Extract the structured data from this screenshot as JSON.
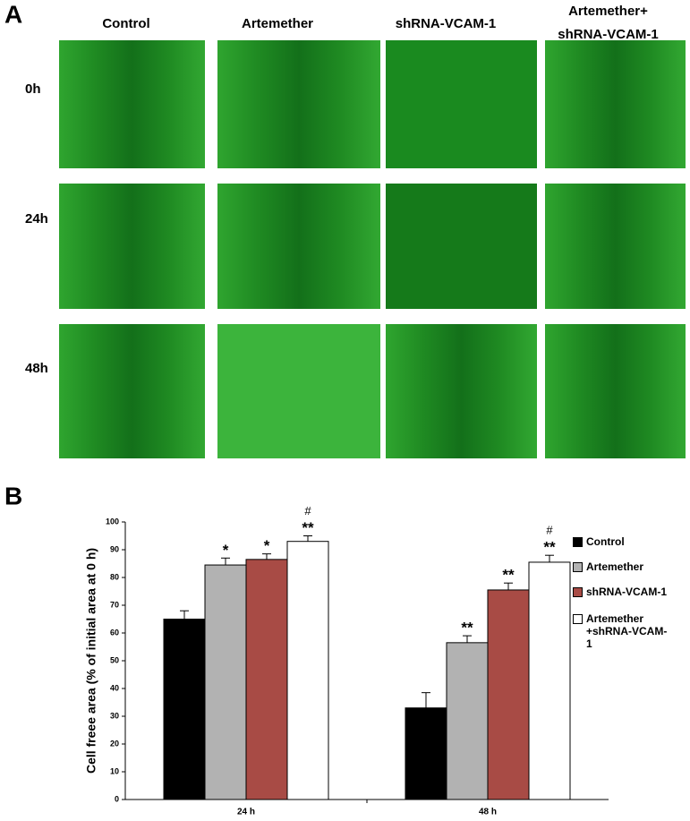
{
  "panel_a": {
    "label": "A",
    "columns": [
      "Control",
      "Artemether",
      "shRNA-VCAM-1",
      "Artemether+ shRNA-VCAM-1"
    ],
    "rows": [
      "0h",
      "24h",
      "48h"
    ]
  },
  "chart_data": {
    "type": "bar",
    "label": "B",
    "ylabel": "Cell freee area (% of initial area at 0 h)",
    "categories": [
      "24 h",
      "48 h"
    ],
    "series": [
      {
        "name": "Control",
        "color": "#000000",
        "values": [
          65,
          33
        ],
        "errors": [
          3,
          5.5
        ]
      },
      {
        "name": "Artemether",
        "color": "#b2b2b2",
        "values": [
          84.5,
          56.5
        ],
        "errors": [
          2.5,
          2.5
        ],
        "labels": [
          "*",
          "**"
        ]
      },
      {
        "name": "shRNA-VCAM-1",
        "color": "#a84b45",
        "values": [
          86.5,
          75.5
        ],
        "errors": [
          2,
          2.5
        ],
        "labels": [
          "*",
          "**"
        ]
      },
      {
        "name": "Artemether +shRNA-VCAM-1",
        "color": "#ffffff",
        "values": [
          93,
          85.5
        ],
        "errors": [
          2,
          2.5
        ],
        "labels": [
          "**",
          "**"
        ],
        "labels2": [
          "#",
          "#"
        ]
      }
    ],
    "ylim": [
      0,
      100
    ],
    "yticks": [
      0,
      10,
      20,
      30,
      40,
      50,
      60,
      70,
      80,
      90,
      100
    ],
    "legend": "right"
  }
}
